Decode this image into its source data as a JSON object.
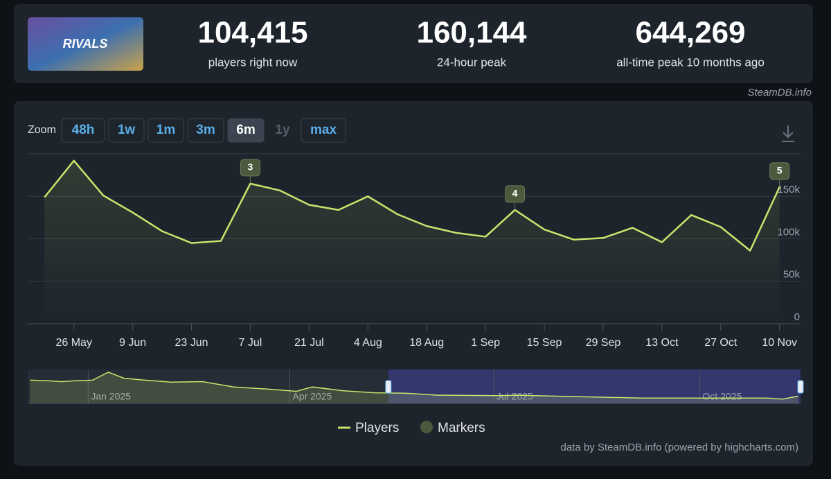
{
  "header": {
    "logo_text": "RIVALS",
    "stats": [
      {
        "value": "104,415",
        "label": "players right now"
      },
      {
        "value": "160,144",
        "label": "24-hour peak"
      },
      {
        "value": "644,269",
        "label": "all-time peak 10 months ago"
      }
    ],
    "source": "SteamDB.info"
  },
  "zoom": {
    "label": "Zoom",
    "buttons": [
      {
        "text": "48h",
        "state": "normal"
      },
      {
        "text": "1w",
        "state": "normal"
      },
      {
        "text": "1m",
        "state": "normal"
      },
      {
        "text": "3m",
        "state": "normal"
      },
      {
        "text": "6m",
        "state": "active"
      },
      {
        "text": "1y",
        "state": "disabled"
      },
      {
        "text": "max",
        "state": "normal"
      }
    ]
  },
  "chart_data": {
    "type": "line",
    "x": [
      "2025-05-19",
      "2025-05-26",
      "2025-06-02",
      "2025-06-09",
      "2025-06-16",
      "2025-06-23",
      "2025-06-30",
      "2025-07-07",
      "2025-07-14",
      "2025-07-21",
      "2025-07-28",
      "2025-08-04",
      "2025-08-11",
      "2025-08-18",
      "2025-08-25",
      "2025-09-01",
      "2025-09-08",
      "2025-09-15",
      "2025-09-22",
      "2025-09-29",
      "2025-10-06",
      "2025-10-13",
      "2025-10-20",
      "2025-10-27",
      "2025-11-03",
      "2025-11-10"
    ],
    "series": [
      {
        "name": "Players",
        "color": "#c8e66c",
        "values": [
          149000,
          192000,
          151000,
          131000,
          109000,
          95000,
          97500,
          165000,
          157000,
          140000,
          134000,
          150000,
          129000,
          115000,
          107000,
          102500,
          134000,
          111000,
          99000,
          101000,
          113000,
          96000,
          128000,
          114000,
          86000,
          161000
        ]
      }
    ],
    "xlim": [
      "2025-05-15",
      "2025-11-15"
    ],
    "xticks": [
      {
        "value": "2025-05-26",
        "label": "26 May"
      },
      {
        "value": "2025-06-09",
        "label": "9 Jun"
      },
      {
        "value": "2025-06-23",
        "label": "23 Jun"
      },
      {
        "value": "2025-07-07",
        "label": "7 Jul"
      },
      {
        "value": "2025-07-21",
        "label": "21 Jul"
      },
      {
        "value": "2025-08-04",
        "label": "4 Aug"
      },
      {
        "value": "2025-08-18",
        "label": "18 Aug"
      },
      {
        "value": "2025-09-01",
        "label": "1 Sep"
      },
      {
        "value": "2025-09-15",
        "label": "15 Sep"
      },
      {
        "value": "2025-09-29",
        "label": "29 Sep"
      },
      {
        "value": "2025-10-13",
        "label": "13 Oct"
      },
      {
        "value": "2025-10-27",
        "label": "27 Oct"
      },
      {
        "value": "2025-11-10",
        "label": "10 Nov"
      }
    ],
    "ylim": [
      0,
      200000
    ],
    "yticks": [
      0,
      {
        "value": 50000,
        "label": "50k"
      },
      {
        "value": 100000,
        "label": "100k"
      },
      {
        "value": 150000,
        "label": "150k"
      }
    ],
    "grid": true,
    "markers": {
      "name": "Markers",
      "color": "#4b5a3c",
      "points": [
        {
          "x": "2025-07-07",
          "label": "3"
        },
        {
          "x": "2025-09-08",
          "label": "4"
        },
        {
          "x": "2025-11-10",
          "label": "5"
        }
      ]
    },
    "navigator": {
      "x": [
        "2024-12-06",
        "2024-12-13",
        "2024-12-20",
        "2024-12-27",
        "2025-01-03",
        "2025-01-10",
        "2025-01-17",
        "2025-01-24",
        "2025-02-07",
        "2025-02-21",
        "2025-03-07",
        "2025-03-21",
        "2025-04-04",
        "2025-04-11",
        "2025-04-25",
        "2025-05-09",
        "2025-05-23",
        "2025-06-06",
        "2025-07-04",
        "2025-07-11",
        "2025-08-08",
        "2025-09-05",
        "2025-10-03",
        "2025-10-31",
        "2025-11-07",
        "2025-11-14"
      ],
      "values": [
        480000,
        470000,
        450000,
        470000,
        480000,
        644000,
        520000,
        490000,
        440000,
        450000,
        340000,
        300000,
        250000,
        340000,
        260000,
        220000,
        210000,
        170000,
        160000,
        170000,
        140000,
        110000,
        110000,
        110000,
        90000,
        150000
      ],
      "xlim": [
        "2024-12-05",
        "2025-11-15"
      ],
      "ylim": [
        0,
        700000
      ],
      "xticks": [
        {
          "value": "2025-01-01",
          "label": "Jan 2025"
        },
        {
          "value": "2025-04-01",
          "label": "Apr 2025"
        },
        {
          "value": "2025-07-01",
          "label": "Jul 2025"
        },
        {
          "value": "2025-10-01",
          "label": "Oct 2025"
        }
      ]
    },
    "legend": "bottom",
    "credits": "data by SteamDB.info (powered by highcharts.com)"
  }
}
